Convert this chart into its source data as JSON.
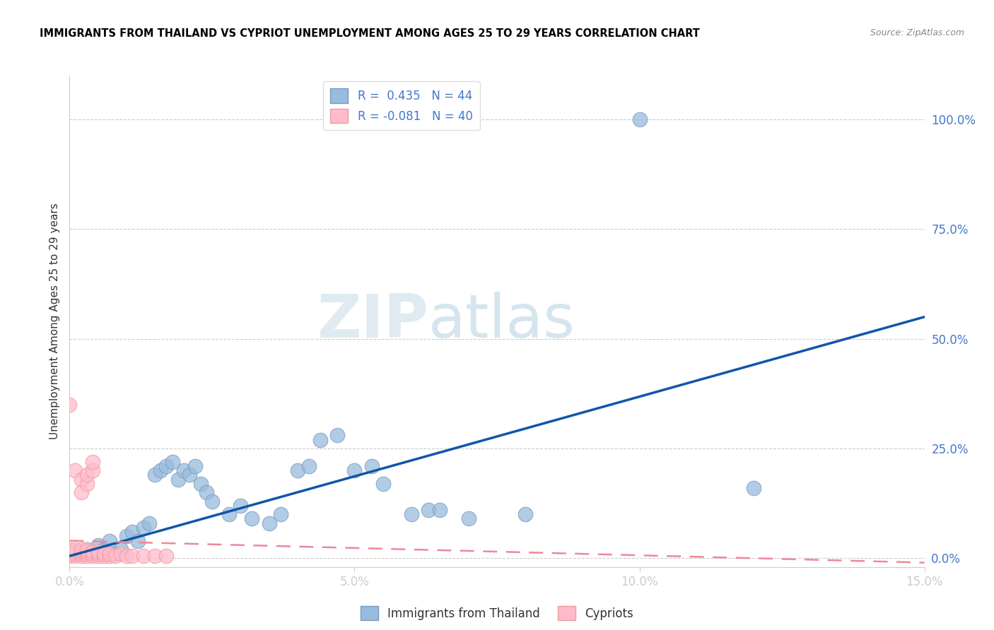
{
  "title": "IMMIGRANTS FROM THAILAND VS CYPRIOT UNEMPLOYMENT AMONG AGES 25 TO 29 YEARS CORRELATION CHART",
  "source": "Source: ZipAtlas.com",
  "ylabel": "Unemployment Among Ages 25 to 29 years",
  "xlim": [
    0.0,
    0.15
  ],
  "ylim": [
    -0.02,
    1.1
  ],
  "xticks": [
    0.0,
    0.05,
    0.1,
    0.15
  ],
  "xticklabels": [
    "0.0%",
    "5.0%",
    "10.0%",
    "15.0%"
  ],
  "yticks": [
    0.0,
    0.25,
    0.5,
    0.75,
    1.0
  ],
  "yticklabels": [
    "0.0%",
    "25.0%",
    "50.0%",
    "75.0%",
    "100.0%"
  ],
  "blue_color": "#99BBDD",
  "pink_color": "#FFBBCC",
  "blue_edge": "#7799BB",
  "pink_edge": "#EE9999",
  "trend_blue": "#1155AA",
  "trend_pink": "#EE8899",
  "legend_r_blue": "R =  0.435   N = 44",
  "legend_r_pink": "R = -0.081   N = 40",
  "legend_label_blue": "Immigrants from Thailand",
  "legend_label_pink": "Cypriots",
  "watermark_zip": "ZIP",
  "watermark_atlas": "atlas",
  "blue_points": [
    [
      0.001,
      0.01
    ],
    [
      0.002,
      0.015
    ],
    [
      0.003,
      0.02
    ],
    [
      0.004,
      0.01
    ],
    [
      0.005,
      0.03
    ],
    [
      0.006,
      0.02
    ],
    [
      0.007,
      0.04
    ],
    [
      0.008,
      0.01
    ],
    [
      0.009,
      0.02
    ],
    [
      0.01,
      0.05
    ],
    [
      0.011,
      0.06
    ],
    [
      0.012,
      0.04
    ],
    [
      0.013,
      0.07
    ],
    [
      0.014,
      0.08
    ],
    [
      0.015,
      0.19
    ],
    [
      0.016,
      0.2
    ],
    [
      0.017,
      0.21
    ],
    [
      0.018,
      0.22
    ],
    [
      0.019,
      0.18
    ],
    [
      0.02,
      0.2
    ],
    [
      0.021,
      0.19
    ],
    [
      0.022,
      0.21
    ],
    [
      0.023,
      0.17
    ],
    [
      0.024,
      0.15
    ],
    [
      0.025,
      0.13
    ],
    [
      0.028,
      0.1
    ],
    [
      0.03,
      0.12
    ],
    [
      0.032,
      0.09
    ],
    [
      0.035,
      0.08
    ],
    [
      0.037,
      0.1
    ],
    [
      0.04,
      0.2
    ],
    [
      0.042,
      0.21
    ],
    [
      0.044,
      0.27
    ],
    [
      0.047,
      0.28
    ],
    [
      0.05,
      0.2
    ],
    [
      0.053,
      0.21
    ],
    [
      0.055,
      0.17
    ],
    [
      0.06,
      0.1
    ],
    [
      0.063,
      0.11
    ],
    [
      0.065,
      0.11
    ],
    [
      0.07,
      0.09
    ],
    [
      0.08,
      0.1
    ],
    [
      0.1,
      1.0
    ],
    [
      0.12,
      0.16
    ]
  ],
  "pink_points": [
    [
      0.0,
      0.005
    ],
    [
      0.0,
      0.01
    ],
    [
      0.0,
      0.02
    ],
    [
      0.001,
      0.005
    ],
    [
      0.001,
      0.01
    ],
    [
      0.001,
      0.015
    ],
    [
      0.001,
      0.02
    ],
    [
      0.002,
      0.005
    ],
    [
      0.002,
      0.01
    ],
    [
      0.002,
      0.015
    ],
    [
      0.002,
      0.02
    ],
    [
      0.003,
      0.005
    ],
    [
      0.003,
      0.01
    ],
    [
      0.003,
      0.015
    ],
    [
      0.003,
      0.02
    ],
    [
      0.004,
      0.005
    ],
    [
      0.004,
      0.01
    ],
    [
      0.004,
      0.015
    ],
    [
      0.005,
      0.005
    ],
    [
      0.005,
      0.01
    ],
    [
      0.005,
      0.015
    ],
    [
      0.006,
      0.005
    ],
    [
      0.006,
      0.01
    ],
    [
      0.007,
      0.005
    ],
    [
      0.007,
      0.01
    ],
    [
      0.008,
      0.005
    ],
    [
      0.009,
      0.01
    ],
    [
      0.01,
      0.005
    ],
    [
      0.011,
      0.005
    ],
    [
      0.013,
      0.005
    ],
    [
      0.015,
      0.005
    ],
    [
      0.017,
      0.005
    ],
    [
      0.0,
      0.35
    ],
    [
      0.001,
      0.2
    ],
    [
      0.002,
      0.18
    ],
    [
      0.002,
      0.15
    ],
    [
      0.003,
      0.17
    ],
    [
      0.003,
      0.19
    ],
    [
      0.004,
      0.2
    ],
    [
      0.004,
      0.22
    ]
  ],
  "blue_trend_x": [
    0.0,
    0.15
  ],
  "blue_trend_y": [
    0.005,
    0.55
  ],
  "pink_trend_x": [
    0.0,
    0.15
  ],
  "pink_trend_y": [
    0.04,
    -0.01
  ]
}
